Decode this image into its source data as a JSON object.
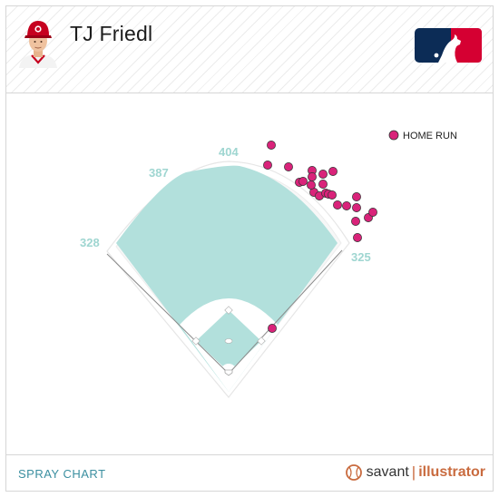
{
  "header": {
    "player_name": "TJ Friedl"
  },
  "footer": {
    "chart_title": "SPRAY CHART",
    "brand_left": "savant",
    "brand_right": "illustrator"
  },
  "colors": {
    "home_run": "#d9237a",
    "field": "#b2e0dc",
    "infield_dirt": "#ffffff",
    "wall_label": "#9fd6d1",
    "accent": "#3b8fa0",
    "brand": "#c96b3f"
  },
  "chart_data": {
    "type": "scatter",
    "title": "SPRAY CHART",
    "fence_distances": [
      "328",
      "387",
      "404",
      "325"
    ],
    "legend": [
      {
        "name": "HOME RUN",
        "color": "#d9237a"
      }
    ],
    "legend_position": "top-right",
    "series": [
      {
        "name": "HOME RUN",
        "points": [
          {
            "x": 299,
            "y": 160
          },
          {
            "x": 295,
            "y": 182
          },
          {
            "x": 318,
            "y": 184
          },
          {
            "x": 330,
            "y": 201
          },
          {
            "x": 334,
            "y": 200
          },
          {
            "x": 344,
            "y": 188
          },
          {
            "x": 344,
            "y": 195
          },
          {
            "x": 346,
            "y": 212
          },
          {
            "x": 343,
            "y": 204
          },
          {
            "x": 356,
            "y": 192
          },
          {
            "x": 356,
            "y": 203
          },
          {
            "x": 367,
            "y": 189
          },
          {
            "x": 352,
            "y": 216
          },
          {
            "x": 359,
            "y": 213
          },
          {
            "x": 362,
            "y": 214
          },
          {
            "x": 366,
            "y": 215
          },
          {
            "x": 372,
            "y": 226
          },
          {
            "x": 382,
            "y": 227
          },
          {
            "x": 393,
            "y": 217
          },
          {
            "x": 393,
            "y": 229
          },
          {
            "x": 392,
            "y": 244
          },
          {
            "x": 406,
            "y": 240
          },
          {
            "x": 411,
            "y": 234
          },
          {
            "x": 394,
            "y": 262
          },
          {
            "x": 300,
            "y": 362
          }
        ]
      }
    ]
  }
}
